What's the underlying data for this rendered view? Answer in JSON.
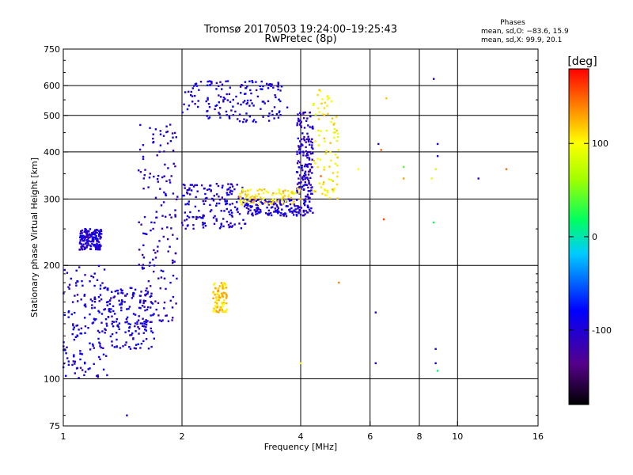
{
  "chart_data": {
    "type": "scatter",
    "title": "Tromsø 20170503 19:24:00–19:25:43",
    "subtitle": "RwPretec (8p)",
    "stats_header": "Phases",
    "stats_line_o": "mean, sd,O: −83.6, 15.9",
    "stats_line_x": "mean, sd,X:  99.9, 20.1",
    "xlabel": "Frequency [MHz]",
    "ylabel": "Stationary phase Virtual Height [km]",
    "x_scale": "log2",
    "y_scale": "log",
    "xlim": [
      1,
      16
    ],
    "ylim": [
      75,
      750
    ],
    "x_ticks": [
      1,
      2,
      4,
      6,
      8,
      10,
      16
    ],
    "x_tick_labels": [
      "1",
      "2",
      "4",
      "6",
      "8",
      "10",
      "16"
    ],
    "y_ticks": [
      75,
      100,
      200,
      300,
      400,
      500,
      600,
      750
    ],
    "y_tick_labels": [
      "75",
      "100",
      "200",
      "300",
      "400",
      "500",
      "600",
      "750"
    ],
    "grid": true,
    "colorbar": {
      "label": "[deg]",
      "range": [
        -180,
        180
      ],
      "ticks": [
        100,
        0,
        -100
      ],
      "tick_labels": [
        "100",
        "0",
        "-100"
      ]
    },
    "o_mode_clusters": [
      {
        "freq_range": [
          1.0,
          1.3
        ],
        "height_range": [
          100,
          200
        ],
        "phase": -95
      },
      {
        "freq_range": [
          1.1,
          1.25
        ],
        "height_range": [
          220,
          250
        ],
        "phase": -100
      },
      {
        "freq_range": [
          1.3,
          1.7
        ],
        "height_range": [
          120,
          175
        ],
        "phase": -95
      },
      {
        "freq_range": [
          1.55,
          1.95
        ],
        "height_range": [
          140,
          480
        ],
        "phase": -105
      },
      {
        "freq_range": [
          2.0,
          2.9
        ],
        "height_range": [
          250,
          330
        ],
        "phase": -100
      },
      {
        "freq_range": [
          2.0,
          3.6
        ],
        "height_range": [
          480,
          620
        ],
        "phase": -95
      },
      {
        "freq_range": [
          2.9,
          4.3
        ],
        "height_range": [
          270,
          300
        ],
        "phase": -100
      },
      {
        "freq_range": [
          3.9,
          4.3
        ],
        "height_range": [
          300,
          510
        ],
        "phase": -105
      }
    ],
    "x_mode_clusters": [
      {
        "freq_range": [
          2.4,
          2.6
        ],
        "height_range": [
          150,
          180
        ],
        "phase": 115
      },
      {
        "freq_range": [
          2.8,
          4.0
        ],
        "height_range": [
          290,
          320
        ],
        "phase": 110
      },
      {
        "freq_range": [
          4.3,
          5.0
        ],
        "height_range": [
          300,
          590
        ],
        "phase": 105
      }
    ],
    "scattered_points": [
      {
        "x": 6.3,
        "y": 420,
        "phase": -100
      },
      {
        "x": 6.4,
        "y": 405,
        "phase": 150
      },
      {
        "x": 6.5,
        "y": 265,
        "phase": 160
      },
      {
        "x": 6.6,
        "y": 555,
        "phase": 120
      },
      {
        "x": 6.2,
        "y": 150,
        "phase": -100
      },
      {
        "x": 6.2,
        "y": 110,
        "phase": -100
      },
      {
        "x": 7.3,
        "y": 365,
        "phase": 40
      },
      {
        "x": 7.3,
        "y": 340,
        "phase": 130
      },
      {
        "x": 8.7,
        "y": 625,
        "phase": -100
      },
      {
        "x": 8.9,
        "y": 420,
        "phase": -100
      },
      {
        "x": 8.9,
        "y": 390,
        "phase": -100
      },
      {
        "x": 8.8,
        "y": 360,
        "phase": 80
      },
      {
        "x": 8.6,
        "y": 340,
        "phase": 90
      },
      {
        "x": 8.7,
        "y": 260,
        "phase": 20
      },
      {
        "x": 8.8,
        "y": 120,
        "phase": -100
      },
      {
        "x": 8.8,
        "y": 110,
        "phase": -90
      },
      {
        "x": 8.9,
        "y": 105,
        "phase": 10
      },
      {
        "x": 11.3,
        "y": 340,
        "phase": -100
      },
      {
        "x": 13.3,
        "y": 360,
        "phase": 150
      },
      {
        "x": 5.0,
        "y": 180,
        "phase": 140
      },
      {
        "x": 5.6,
        "y": 360,
        "phase": 100
      },
      {
        "x": 4.0,
        "y": 110,
        "phase": 100
      },
      {
        "x": 1.45,
        "y": 80,
        "phase": -100
      },
      {
        "x": 3.7,
        "y": 525,
        "phase": -100
      },
      {
        "x": 4.5,
        "y": 345,
        "phase": 150
      }
    ]
  }
}
